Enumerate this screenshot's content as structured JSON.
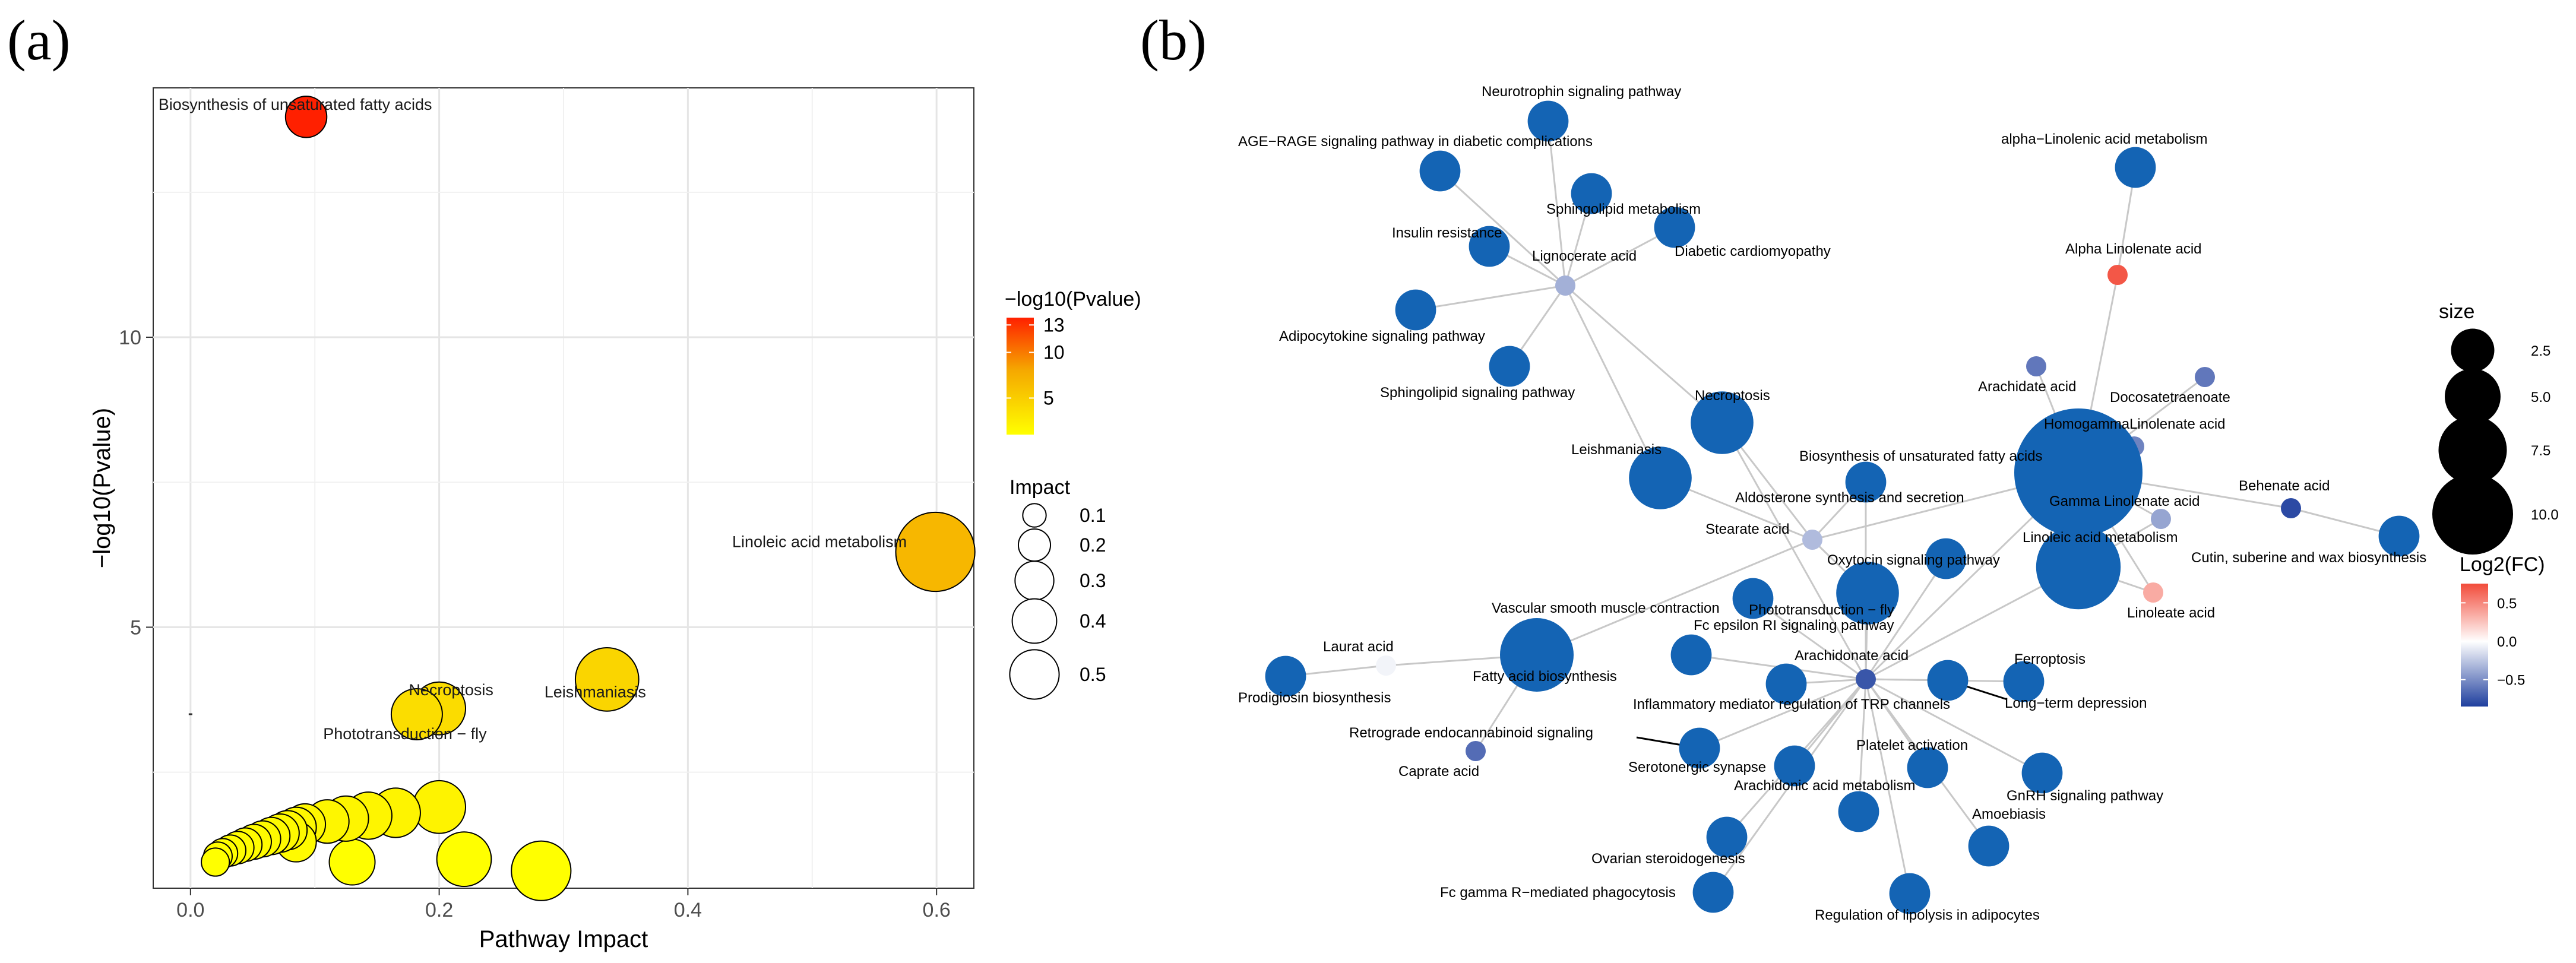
{
  "panels": {
    "a": "(a)",
    "b": "(b)"
  },
  "chart_data": [
    {
      "type": "scatter",
      "title": "",
      "xlabel": "Pathway Impact",
      "ylabel": "−log10(Pvalue)",
      "xlim": [
        -0.03,
        0.63
      ],
      "ylim": [
        0.5,
        14.3
      ],
      "xticks": [
        {
          "v": 0.0,
          "label": "0.0"
        },
        {
          "v": 0.2,
          "label": "0.2"
        },
        {
          "v": 0.4,
          "label": "0.4"
        },
        {
          "v": 0.6,
          "label": "0.6"
        }
      ],
      "yticks": [
        {
          "v": 5,
          "label": "5"
        },
        {
          "v": 10,
          "label": "10"
        }
      ],
      "minor_y": [
        2.5,
        7.5,
        12.5
      ],
      "grid": true,
      "color_legend": {
        "title": "−log10(Pvalue)",
        "ticks": [
          "13",
          "10",
          "5"
        ],
        "tick_values": [
          13,
          10,
          5
        ],
        "range": [
          1,
          13.8
        ],
        "low_color": "#ffff00",
        "mid_color": "#f5a800",
        "high_color": "#ff2000"
      },
      "size_legend": {
        "title": "Impact",
        "labels": [
          "0.1",
          "0.2",
          "0.3",
          "0.4",
          "0.5"
        ],
        "values": [
          0.1,
          0.2,
          0.3,
          0.4,
          0.5
        ]
      },
      "stray_tick": {
        "x": 0.0,
        "y": 3.5
      },
      "points": [
        {
          "x": 0.093,
          "y": 13.8,
          "label": "Biosynthesis of unsaturated fatty acids"
        },
        {
          "x": 0.599,
          "y": 6.3,
          "label": "Linoleic acid metabolism"
        },
        {
          "x": 0.335,
          "y": 4.1,
          "label": "Leishmaniasis"
        },
        {
          "x": 0.2,
          "y": 3.6,
          "label": "Necroptosis"
        },
        {
          "x": 0.182,
          "y": 3.5,
          "label": "Phototransduction − fly"
        },
        {
          "x": 0.2,
          "y": 1.9,
          "label": ""
        },
        {
          "x": 0.165,
          "y": 1.8,
          "label": ""
        },
        {
          "x": 0.143,
          "y": 1.75,
          "label": ""
        },
        {
          "x": 0.125,
          "y": 1.7,
          "label": ""
        },
        {
          "x": 0.11,
          "y": 1.65,
          "label": ""
        },
        {
          "x": 0.092,
          "y": 1.6,
          "label": ""
        },
        {
          "x": 0.085,
          "y": 1.55,
          "label": ""
        },
        {
          "x": 0.078,
          "y": 1.5,
          "label": ""
        },
        {
          "x": 0.072,
          "y": 1.45,
          "label": ""
        },
        {
          "x": 0.065,
          "y": 1.4,
          "label": ""
        },
        {
          "x": 0.058,
          "y": 1.35,
          "label": ""
        },
        {
          "x": 0.051,
          "y": 1.3,
          "label": ""
        },
        {
          "x": 0.044,
          "y": 1.25,
          "label": ""
        },
        {
          "x": 0.038,
          "y": 1.2,
          "label": ""
        },
        {
          "x": 0.032,
          "y": 1.15,
          "label": ""
        },
        {
          "x": 0.026,
          "y": 1.1,
          "label": ""
        },
        {
          "x": 0.022,
          "y": 1.05,
          "label": ""
        },
        {
          "x": 0.02,
          "y": 0.95,
          "label": ""
        },
        {
          "x": 0.085,
          "y": 1.3,
          "label": ""
        },
        {
          "x": 0.13,
          "y": 0.95,
          "label": ""
        },
        {
          "x": 0.22,
          "y": 1.0,
          "label": ""
        },
        {
          "x": 0.282,
          "y": 0.8,
          "label": ""
        }
      ]
    },
    {
      "type": "network",
      "size_legend": {
        "title": "size",
        "labels": [
          "2.5",
          "5.0",
          "7.5",
          "10.0"
        ],
        "values": [
          2.5,
          5.0,
          7.5,
          10.0
        ]
      },
      "color_legend": {
        "title": "Log2(FC)",
        "ticks": [
          "0.5",
          "0.0",
          "−0.5"
        ],
        "tick_values": [
          0.5,
          0.0,
          -0.5
        ],
        "range": [
          -0.85,
          0.75
        ]
      },
      "nodes": [
        {
          "id": "neurotrophin",
          "label": "Neurotrophin signaling pathway",
          "type": "pathway",
          "size": 2
        },
        {
          "id": "agerage",
          "label": "AGE−RAGE signaling pathway in diabetic complications",
          "type": "pathway",
          "size": 2
        },
        {
          "id": "sphingolipid_met",
          "label": "Sphingolipid metabolism",
          "type": "pathway",
          "size": 2
        },
        {
          "id": "insulin",
          "label": "Insulin resistance",
          "type": "pathway",
          "size": 2
        },
        {
          "id": "diabetic",
          "label": "Diabetic cardiomyopathy",
          "type": "pathway",
          "size": 2
        },
        {
          "id": "lignocerate",
          "label": "Lignocerate acid",
          "type": "compound",
          "size": 1,
          "fc": -0.35
        },
        {
          "id": "adipocytokine",
          "label": "Adipocytokine signaling pathway",
          "type": "pathway",
          "size": 2
        },
        {
          "id": "sphingolipid_sig",
          "label": "Sphingolipid signaling pathway",
          "type": "pathway",
          "size": 2
        },
        {
          "id": "alpha_lin_met",
          "label": "alpha−Linolenic acid metabolism",
          "type": "pathway",
          "size": 2
        },
        {
          "id": "alpha_lin_acid",
          "label": "Alpha Linolenate acid",
          "type": "compound",
          "size": 1,
          "fc": 0.7
        },
        {
          "id": "arachidate",
          "label": "Arachidate acid",
          "type": "compound",
          "size": 1,
          "fc": -0.6
        },
        {
          "id": "docosa",
          "label": "Docosatetraenoate",
          "type": "compound",
          "size": 1,
          "fc": -0.6
        },
        {
          "id": "homogamma",
          "label": "HomogammaLinolenate acid",
          "type": "compound",
          "size": 1,
          "fc": -0.55
        },
        {
          "id": "necroptosis",
          "label": "Necroptosis",
          "type": "pathway",
          "size": 4
        },
        {
          "id": "biosyn_unsat",
          "label": "Biosynthesis of unsaturated fatty acids",
          "type": "pathway",
          "size": 10
        },
        {
          "id": "leishmaniasis",
          "label": "Leishmaniasis",
          "type": "pathway",
          "size": 4
        },
        {
          "id": "aldosterone",
          "label": "Aldosterone synthesis and secretion",
          "type": "pathway",
          "size": 2
        },
        {
          "id": "behenate",
          "label": "Behenate acid",
          "type": "compound",
          "size": 1,
          "fc": -0.8
        },
        {
          "id": "gamma_lin",
          "label": "Gamma Linolenate acid",
          "type": "compound",
          "size": 1,
          "fc": -0.4
        },
        {
          "id": "stearate",
          "label": "Stearate acid",
          "type": "compound",
          "size": 1,
          "fc": -0.3
        },
        {
          "id": "cutin",
          "label": "Cutin, suberine and wax biosynthesis",
          "type": "pathway",
          "size": 2
        },
        {
          "id": "oxytocin",
          "label": "Oxytocin signaling pathway",
          "type": "pathway",
          "size": 2
        },
        {
          "id": "linoleic_met",
          "label": "Linoleic acid metabolism",
          "type": "pathway",
          "size": 6
        },
        {
          "id": "phototrans",
          "label": "Phototransduction − fly",
          "type": "pathway",
          "size": 4
        },
        {
          "id": "linoleate",
          "label": "Linoleate acid",
          "type": "compound",
          "size": 1,
          "fc": 0.35
        },
        {
          "id": "vascular",
          "label": "Vascular smooth muscle contraction",
          "type": "pathway",
          "size": 2
        },
        {
          "id": "laurat",
          "label": "Laurat acid",
          "type": "compound",
          "size": 1,
          "fc": -0.05
        },
        {
          "id": "fc_epsilon",
          "label": "Fc epsilon RI signaling pathway",
          "type": "pathway",
          "size": 2
        },
        {
          "id": "fatty_biosyn",
          "label": "Fatty acid biosynthesis",
          "type": "pathway",
          "size": 5
        },
        {
          "id": "prodigiosin",
          "label": "Prodigiosin biosynthesis",
          "type": "pathway",
          "size": 2
        },
        {
          "id": "arachidonate",
          "label": "Arachidonate acid",
          "type": "compound",
          "size": 1,
          "fc": -0.75
        },
        {
          "id": "ferroptosis",
          "label": "Ferroptosis",
          "type": "pathway",
          "size": 2
        },
        {
          "id": "inflammatory",
          "label": "Inflammatory mediator regulation of TRP channels",
          "type": "pathway",
          "size": 2
        },
        {
          "id": "longterm",
          "label": "Long−term depression",
          "type": "pathway",
          "size": 2
        },
        {
          "id": "retrograde",
          "label": "Retrograde endocannabinoid signaling",
          "type": "pathway",
          "size": 2
        },
        {
          "id": "caprate",
          "label": "Caprate acid",
          "type": "compound",
          "size": 1,
          "fc": -0.65
        },
        {
          "id": "serotonergic",
          "label": "Serotonergic synapse",
          "type": "pathway",
          "size": 2
        },
        {
          "id": "platelet",
          "label": "Platelet activation",
          "type": "pathway",
          "size": 2
        },
        {
          "id": "gnrh",
          "label": "GnRH signaling pathway",
          "type": "pathway",
          "size": 2
        },
        {
          "id": "arachidonic_met",
          "label": "Arachidonic acid metabolism",
          "type": "pathway",
          "size": 2
        },
        {
          "id": "amoebiasis",
          "label": "Amoebiasis",
          "type": "pathway",
          "size": 2
        },
        {
          "id": "ovarian",
          "label": "Ovarian steroidogenesis",
          "type": "pathway",
          "size": 2
        },
        {
          "id": "fcgamma",
          "label": "Fc gamma R−mediated phagocytosis",
          "type": "pathway",
          "size": 2
        },
        {
          "id": "lipolysis",
          "label": "Regulation of lipolysis in adipocytes",
          "type": "pathway",
          "size": 2
        }
      ],
      "edges": [
        [
          "lignocerate",
          "neurotrophin"
        ],
        [
          "lignocerate",
          "agerage"
        ],
        [
          "lignocerate",
          "sphingolipid_met"
        ],
        [
          "lignocerate",
          "insulin"
        ],
        [
          "lignocerate",
          "diabetic"
        ],
        [
          "lignocerate",
          "adipocytokine"
        ],
        [
          "lignocerate",
          "sphingolipid_sig"
        ],
        [
          "lignocerate",
          "necroptosis"
        ],
        [
          "lignocerate",
          "leishmaniasis"
        ],
        [
          "alpha_lin_acid",
          "alpha_lin_met"
        ],
        [
          "alpha_lin_acid",
          "biosyn_unsat"
        ],
        [
          "biosyn_unsat",
          "arachidate"
        ],
        [
          "biosyn_unsat",
          "docosa"
        ],
        [
          "biosyn_unsat",
          "homogamma"
        ],
        [
          "biosyn_unsat",
          "behenate"
        ],
        [
          "biosyn_unsat",
          "gamma_lin"
        ],
        [
          "biosyn_unsat",
          "stearate"
        ],
        [
          "biosyn_unsat",
          "arachidonate"
        ],
        [
          "biosyn_unsat",
          "linoleate"
        ],
        [
          "homogamma",
          "linoleic_met"
        ],
        [
          "gamma_lin",
          "linoleic_met"
        ],
        [
          "linoleate",
          "linoleic_met"
        ],
        [
          "behenate",
          "cutin"
        ],
        [
          "linoleic_met",
          "arachidonate"
        ],
        [
          "stearate",
          "necroptosis"
        ],
        [
          "stearate",
          "leishmaniasis"
        ],
        [
          "stearate",
          "fatty_biosyn"
        ],
        [
          "stearate",
          "phototrans"
        ],
        [
          "stearate",
          "aldosterone"
        ],
        [
          "fatty_biosyn",
          "laurat"
        ],
        [
          "fatty_biosyn",
          "caprate"
        ],
        [
          "laurat",
          "prodigiosin"
        ],
        [
          "arachidonate",
          "aldosterone"
        ],
        [
          "arachidonate",
          "oxytocin"
        ],
        [
          "arachidonate",
          "phototrans"
        ],
        [
          "arachidonate",
          "vascular"
        ],
        [
          "arachidonate",
          "fc_epsilon"
        ],
        [
          "arachidonate",
          "inflammatory"
        ],
        [
          "arachidonate",
          "longterm"
        ],
        [
          "arachidonate",
          "ferroptosis"
        ],
        [
          "arachidonate",
          "retrograde"
        ],
        [
          "arachidonate",
          "serotonergic"
        ],
        [
          "arachidonate",
          "platelet"
        ],
        [
          "arachidonate",
          "gnrh"
        ],
        [
          "arachidonate",
          "arachidonic_met"
        ],
        [
          "arachidonate",
          "amoebiasis"
        ],
        [
          "arachidonate",
          "ovarian"
        ],
        [
          "arachidonate",
          "fcgamma"
        ],
        [
          "arachidonate",
          "lipolysis"
        ],
        [
          "arachidonate",
          "necroptosis"
        ]
      ]
    }
  ]
}
